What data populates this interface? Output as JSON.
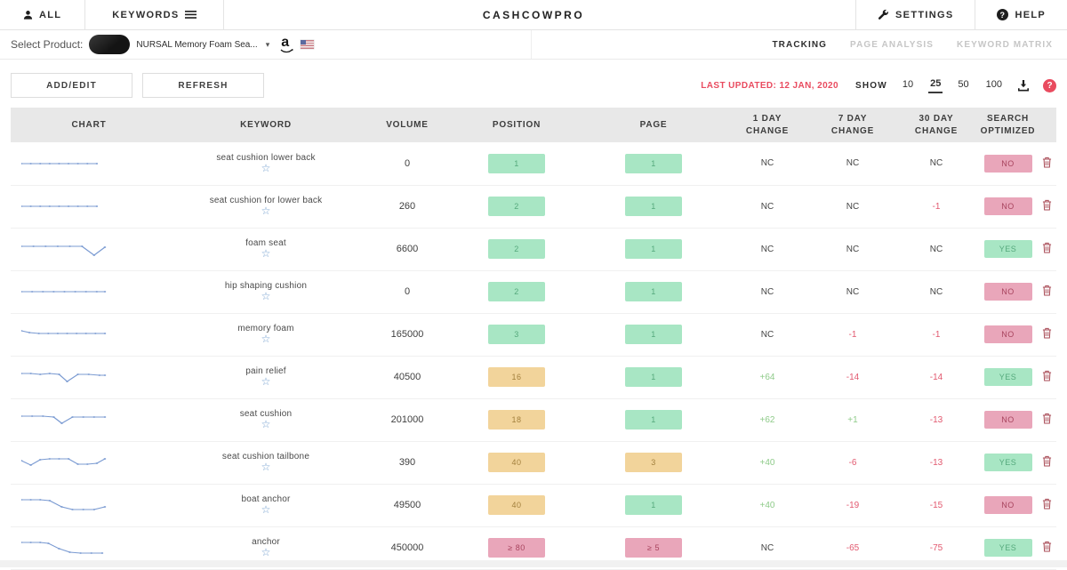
{
  "topbar": {
    "brand": "CASHCOWPRO",
    "tab_all": "ALL",
    "tab_keywords": "KEYWORDS",
    "settings": "SETTINGS",
    "help": "HELP",
    "icons": [
      "person-icon",
      "menu-icon",
      "wrench-icon",
      "help-circle-icon"
    ]
  },
  "product_bar": {
    "select_label": "Select Product:",
    "product_name": "NURSAL Memory Foam Sea...",
    "marketplace_icon": "amazon-icon",
    "country_icon": "us-flag-icon",
    "nav": [
      {
        "label": "TRACKING",
        "active": true
      },
      {
        "label": "PAGE ANALYSIS",
        "active": false
      },
      {
        "label": "KEYWORD MATRIX",
        "active": false
      }
    ]
  },
  "toolbar": {
    "add_edit_label": "ADD/EDIT",
    "refresh_label": "REFRESH",
    "last_updated": "LAST UPDATED: 12 JAN, 2020",
    "show_label": "SHOW",
    "page_sizes": [
      "10",
      "25",
      "50",
      "100"
    ],
    "selected_page_size": "25",
    "icons": [
      "download-icon",
      "question-circle-icon"
    ]
  },
  "table": {
    "columns": [
      "CHART",
      "KEYWORD",
      "VOLUME",
      "POSITION",
      "PAGE",
      "1 DAY\nCHANGE",
      "7 DAY\nCHANGE",
      "30 DAY\nCHANGE",
      "SEARCH\nOPTIMIZED"
    ],
    "rows": [
      {
        "keyword": "seat cushion lower back",
        "volume": "0",
        "position": "1",
        "position_level": "green",
        "page": "1",
        "page_level": "green",
        "change_1d": "NC",
        "change_7d": "NC",
        "change_30d": "NC",
        "optimized": "NO",
        "spark": [
          [
            0,
            15
          ],
          [
            7,
            15
          ],
          [
            14,
            15
          ],
          [
            21,
            15
          ],
          [
            28,
            15
          ],
          [
            35,
            15
          ],
          [
            42,
            15
          ],
          [
            49,
            15
          ],
          [
            56,
            15
          ]
        ]
      },
      {
        "keyword": "seat cushion for lower back",
        "volume": "260",
        "position": "2",
        "position_level": "green",
        "page": "1",
        "page_level": "green",
        "change_1d": "NC",
        "change_7d": "NC",
        "change_30d": "-1",
        "optimized": "NO",
        "spark": [
          [
            0,
            15
          ],
          [
            7,
            15
          ],
          [
            14,
            15
          ],
          [
            21,
            15
          ],
          [
            28,
            15
          ],
          [
            35,
            15
          ],
          [
            42,
            15
          ],
          [
            49,
            15
          ],
          [
            56,
            15
          ]
        ]
      },
      {
        "keyword": "foam seat",
        "volume": "6600",
        "position": "2",
        "position_level": "green",
        "page": "1",
        "page_level": "green",
        "change_1d": "NC",
        "change_7d": "NC",
        "change_30d": "NC",
        "optimized": "YES",
        "spark": [
          [
            0,
            12
          ],
          [
            9,
            12
          ],
          [
            18,
            12
          ],
          [
            27,
            12
          ],
          [
            36,
            12
          ],
          [
            45,
            12
          ],
          [
            54,
            22
          ],
          [
            62,
            13
          ]
        ]
      },
      {
        "keyword": "hip shaping cushion",
        "volume": "0",
        "position": "2",
        "position_level": "green",
        "page": "1",
        "page_level": "green",
        "change_1d": "NC",
        "change_7d": "NC",
        "change_30d": "NC",
        "optimized": "NO",
        "spark": [
          [
            0,
            15
          ],
          [
            8,
            15
          ],
          [
            16,
            15
          ],
          [
            24,
            15
          ],
          [
            32,
            15
          ],
          [
            40,
            15
          ],
          [
            48,
            15
          ],
          [
            56,
            15
          ],
          [
            62,
            15
          ]
        ]
      },
      {
        "keyword": "memory foam",
        "volume": "165000",
        "position": "3",
        "position_level": "green",
        "page": "1",
        "page_level": "green",
        "change_1d": "NC",
        "change_7d": "-1",
        "change_30d": "-1",
        "optimized": "NO",
        "spark": [
          [
            0,
            11
          ],
          [
            6,
            13
          ],
          [
            13,
            14
          ],
          [
            20,
            14
          ],
          [
            27,
            14
          ],
          [
            34,
            14
          ],
          [
            41,
            14
          ],
          [
            48,
            14
          ],
          [
            55,
            14
          ],
          [
            62,
            14
          ]
        ]
      },
      {
        "keyword": "pain relief",
        "volume": "40500",
        "position": "16",
        "position_level": "yellow",
        "page": "1",
        "page_level": "green",
        "change_1d": "+64",
        "change_7d": "-14",
        "change_30d": "-14",
        "optimized": "YES",
        "spark": [
          [
            0,
            11
          ],
          [
            7,
            11
          ],
          [
            14,
            12
          ],
          [
            21,
            11
          ],
          [
            28,
            12
          ],
          [
            34,
            20
          ],
          [
            42,
            12
          ],
          [
            50,
            12
          ],
          [
            58,
            13
          ],
          [
            62,
            13
          ]
        ]
      },
      {
        "keyword": "seat cushion",
        "volume": "201000",
        "position": "18",
        "position_level": "yellow",
        "page": "1",
        "page_level": "green",
        "change_1d": "+62",
        "change_7d": "+1",
        "change_30d": "-13",
        "optimized": "NO",
        "spark": [
          [
            0,
            11
          ],
          [
            8,
            11
          ],
          [
            16,
            11
          ],
          [
            24,
            12
          ],
          [
            30,
            19
          ],
          [
            38,
            12
          ],
          [
            46,
            12
          ],
          [
            54,
            12
          ],
          [
            62,
            12
          ]
        ]
      },
      {
        "keyword": "seat cushion tailbone",
        "volume": "390",
        "position": "40",
        "position_level": "yellow",
        "page": "3",
        "page_level": "yellow",
        "change_1d": "+40",
        "change_7d": "-6",
        "change_30d": "-13",
        "optimized": "YES",
        "spark": [
          [
            0,
            13
          ],
          [
            7,
            18
          ],
          [
            14,
            12
          ],
          [
            21,
            11
          ],
          [
            28,
            11
          ],
          [
            35,
            11
          ],
          [
            42,
            17
          ],
          [
            49,
            17
          ],
          [
            56,
            16
          ],
          [
            62,
            11
          ]
        ]
      },
      {
        "keyword": "boat anchor",
        "volume": "49500",
        "position": "40",
        "position_level": "yellow",
        "page": "1",
        "page_level": "green",
        "change_1d": "+40",
        "change_7d": "-19",
        "change_30d": "-15",
        "optimized": "NO",
        "spark": [
          [
            0,
            9
          ],
          [
            7,
            9
          ],
          [
            14,
            9
          ],
          [
            21,
            10
          ],
          [
            30,
            17
          ],
          [
            38,
            20
          ],
          [
            46,
            20
          ],
          [
            54,
            20
          ],
          [
            62,
            17
          ]
        ]
      },
      {
        "keyword": "anchor",
        "volume": "450000",
        "position": "≥ 80",
        "position_level": "pink",
        "page": "≥ 5",
        "page_level": "pink",
        "change_1d": "NC",
        "change_7d": "-65",
        "change_30d": "-75",
        "optimized": "YES",
        "spark": [
          [
            0,
            9
          ],
          [
            7,
            9
          ],
          [
            14,
            9
          ],
          [
            20,
            10
          ],
          [
            28,
            16
          ],
          [
            36,
            20
          ],
          [
            44,
            21
          ],
          [
            52,
            21
          ],
          [
            60,
            21
          ]
        ]
      }
    ]
  },
  "colors": {
    "accent_red": "#e94b5f",
    "badge_green_bg": "#a8e6c4",
    "badge_green_text": "#55a97c",
    "badge_yellow_bg": "#f2d49b",
    "badge_yellow_text": "#a3803d",
    "badge_pink_bg": "#e9a6ba",
    "badge_pink_text": "#a8445e",
    "positive_green": "#8fcb8a",
    "negative_red": "#e2596f",
    "spark_blue": "#7b9bd2"
  }
}
